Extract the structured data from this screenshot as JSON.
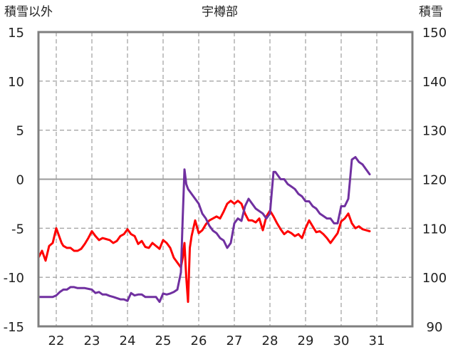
{
  "chart_data": {
    "type": "line",
    "title": "宇樽部",
    "ylabel_left": "積雪以外",
    "ylabel_right": "積雪",
    "x_ticks": [
      "22",
      "23",
      "24",
      "25",
      "26",
      "27",
      "28",
      "29",
      "30",
      "31"
    ],
    "y_left_ticks": [
      "15",
      "10",
      "5",
      "0",
      "-5",
      "-10",
      "-15"
    ],
    "y_right_ticks": [
      "150",
      "140",
      "130",
      "120",
      "110",
      "100",
      "90"
    ],
    "ylim_left": [
      -15,
      15
    ],
    "ylim_right": [
      90,
      150
    ],
    "xlim": [
      21.5,
      32.0
    ],
    "grid": true,
    "series": [
      {
        "color": "#ff0000",
        "axis": "left",
        "x": [
          21.5,
          21.6,
          21.7,
          21.8,
          21.9,
          22.0,
          22.1,
          22.15,
          22.2,
          22.3,
          22.4,
          22.5,
          22.6,
          22.7,
          22.8,
          22.9,
          23.0,
          23.1,
          23.2,
          23.3,
          23.4,
          23.5,
          23.6,
          23.7,
          23.8,
          23.9,
          24.0,
          24.1,
          24.2,
          24.3,
          24.4,
          24.5,
          24.6,
          24.7,
          24.8,
          24.9,
          25.0,
          25.1,
          25.2,
          25.3,
          25.4,
          25.5,
          25.55,
          25.6,
          25.65,
          25.7,
          25.75,
          25.8,
          25.9,
          26.0,
          26.1,
          26.2,
          26.3,
          26.4,
          26.5,
          26.6,
          26.7,
          26.8,
          26.9,
          27.0,
          27.1,
          27.2,
          27.3,
          27.4,
          27.5,
          27.6,
          27.7,
          27.8,
          27.9,
          28.0,
          28.1,
          28.2,
          28.3,
          28.4,
          28.5,
          28.6,
          28.7,
          28.8,
          28.9,
          29.0,
          29.1,
          29.2,
          29.3,
          29.4,
          29.5,
          29.6,
          29.7,
          29.8,
          29.9,
          30.0,
          30.1,
          30.2,
          30.3,
          30.4,
          30.5,
          30.6,
          30.7,
          30.8
        ],
        "y": [
          -8.0,
          -7.3,
          -8.3,
          -6.8,
          -6.5,
          -5.0,
          -6.0,
          -6.5,
          -6.8,
          -7.0,
          -7.0,
          -7.3,
          -7.3,
          -7.1,
          -6.6,
          -6.0,
          -5.3,
          -5.8,
          -6.2,
          -6.0,
          -6.1,
          -6.2,
          -6.5,
          -6.3,
          -5.8,
          -5.6,
          -5.1,
          -5.6,
          -5.8,
          -6.6,
          -6.3,
          -6.9,
          -7.0,
          -6.5,
          -6.8,
          -7.1,
          -6.2,
          -6.5,
          -7.0,
          -8.0,
          -8.5,
          -9.0,
          -8.0,
          -6.5,
          -10.0,
          -12.5,
          -7.0,
          -5.8,
          -4.2,
          -5.5,
          -5.2,
          -4.6,
          -4.2,
          -4.0,
          -3.8,
          -4.0,
          -3.3,
          -2.5,
          -2.2,
          -2.5,
          -2.2,
          -2.5,
          -3.5,
          -4.2,
          -4.2,
          -4.4,
          -4.0,
          -5.2,
          -3.8,
          -3.2,
          -3.8,
          -4.5,
          -5.1,
          -5.6,
          -5.3,
          -5.5,
          -5.8,
          -5.6,
          -6.0,
          -5.0,
          -4.2,
          -4.8,
          -5.4,
          -5.3,
          -5.6,
          -6.0,
          -6.5,
          -6.0,
          -5.5,
          -4.3,
          -4.0,
          -3.5,
          -4.5,
          -5.0,
          -4.8,
          -5.1,
          -5.2,
          -5.3
        ]
      },
      {
        "color": "#7030a0",
        "axis": "right",
        "x": [
          21.5,
          21.7,
          21.9,
          22.0,
          22.1,
          22.2,
          22.3,
          22.4,
          22.5,
          22.6,
          22.8,
          23.0,
          23.1,
          23.2,
          23.3,
          23.4,
          23.5,
          23.6,
          23.8,
          23.9,
          24.0,
          24.1,
          24.2,
          24.3,
          24.4,
          24.5,
          24.6,
          24.7,
          24.8,
          24.9,
          25.0,
          25.1,
          25.2,
          25.3,
          25.4,
          25.5,
          25.55,
          25.6,
          25.65,
          25.7,
          25.8,
          25.9,
          26.0,
          26.1,
          26.2,
          26.3,
          26.4,
          26.5,
          26.6,
          26.7,
          26.8,
          26.9,
          27.0,
          27.1,
          27.2,
          27.3,
          27.4,
          27.5,
          27.6,
          27.7,
          27.8,
          27.9,
          28.0,
          28.1,
          28.15,
          28.2,
          28.3,
          28.4,
          28.5,
          28.6,
          28.7,
          28.8,
          28.9,
          29.0,
          29.1,
          29.2,
          29.3,
          29.4,
          29.5,
          29.6,
          29.7,
          29.8,
          29.9,
          30.0,
          30.1,
          30.2,
          30.3,
          30.4,
          30.45,
          30.5,
          30.6,
          30.7,
          30.8
        ],
        "y": [
          96.0,
          96.0,
          96.0,
          96.3,
          97.0,
          97.5,
          97.5,
          98.0,
          98.0,
          97.8,
          97.8,
          97.5,
          96.8,
          97.0,
          96.5,
          96.5,
          96.2,
          96.0,
          95.5,
          95.5,
          95.2,
          96.8,
          96.3,
          96.5,
          96.5,
          96.0,
          96.0,
          96.0,
          96.0,
          95.0,
          96.7,
          96.5,
          96.7,
          97.0,
          97.5,
          101.0,
          112.0,
          122.0,
          119.0,
          118.0,
          117.0,
          116.0,
          115.0,
          113.0,
          112.0,
          110.5,
          109.5,
          109.0,
          108.0,
          107.5,
          106.0,
          107.0,
          111.0,
          112.0,
          111.5,
          114.5,
          116.0,
          115.0,
          114.0,
          113.5,
          113.0,
          112.0,
          113.0,
          121.5,
          121.5,
          121.0,
          120.0,
          120.0,
          119.0,
          118.5,
          118.0,
          117.0,
          116.5,
          115.5,
          115.5,
          114.5,
          114.0,
          113.0,
          112.5,
          112.0,
          112.0,
          111.0,
          111.0,
          114.5,
          114.5,
          116.0,
          124.0,
          124.5,
          124.0,
          123.5,
          123.0,
          122.0,
          121.0
        ]
      }
    ]
  }
}
